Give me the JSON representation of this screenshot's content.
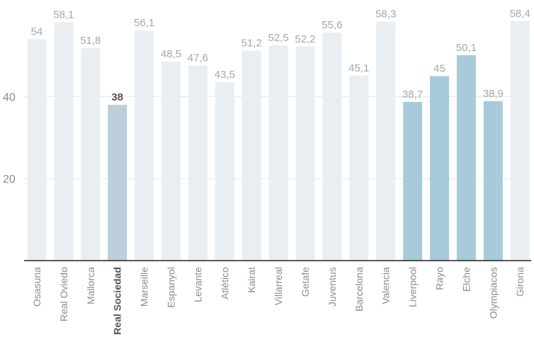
{
  "chart_data": {
    "type": "bar",
    "title": "",
    "xlabel": "",
    "ylabel": "",
    "ylim": [
      0,
      62
    ],
    "yticks": [
      20,
      40
    ],
    "categories": [
      "Osasuna",
      "Real Oviedo",
      "Mallorca",
      "Real Sociedad",
      "Marseille",
      "Espanyol",
      "Levante",
      "Atlético",
      "Kairat",
      "Villarreal",
      "Getafe",
      "Juventus",
      "Barcelona",
      "Valencia",
      "Liverpool",
      "Rayo",
      "Elche",
      "Olympiacos",
      "Girona"
    ],
    "values": [
      54,
      58.1,
      51.8,
      38,
      56.1,
      48.5,
      47.6,
      43.5,
      51.2,
      52.5,
      52.2,
      55.6,
      45.1,
      58.3,
      38.7,
      45,
      50.1,
      38.9,
      58.4
    ],
    "value_labels": [
      "54",
      "58,1",
      "51,8",
      "38",
      "56,1",
      "48,5",
      "47,6",
      "43,5",
      "51,2",
      "52,5",
      "52,2",
      "55,6",
      "45,1",
      "58,3",
      "38,7",
      "45",
      "50,1",
      "38,9",
      "58,4"
    ],
    "groups": [
      "base",
      "base",
      "base",
      "focus",
      "base",
      "base",
      "base",
      "base",
      "base",
      "base",
      "base",
      "base",
      "base",
      "base",
      "accent",
      "accent",
      "accent",
      "accent",
      "base"
    ],
    "colors": {
      "base": "#e9eef3",
      "focus": "#bccfdb",
      "accent": "#a7cbda",
      "grid": "#e6e6e6",
      "axis": "#222222"
    }
  }
}
